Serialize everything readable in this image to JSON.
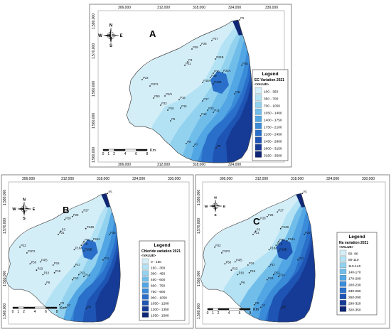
{
  "panels": [
    {
      "id": "A",
      "letter": "A",
      "legend_title": "Legend",
      "legend_subtitle": "EC Variation 2021",
      "legend_value_label": "<VALUE>",
      "classes": [
        "100 - 350",
        "350 - 700",
        "700 - 1050",
        "1050 - 1400",
        "1400 - 1750",
        "1750 - 2100",
        "2100 - 2450",
        "2450 - 2800",
        "2800 - 3150",
        "3150 - 3500"
      ],
      "x_ticks": [
        "306,000",
        "312,000",
        "318,000",
        "324,000",
        "330,000"
      ],
      "y_ticks": [
        "1,580,000",
        "1,570,000",
        "1,560,000",
        "1,560,000",
        "1,560,000"
      ]
    },
    {
      "id": "B",
      "letter": "B",
      "legend_title": "Legend",
      "legend_subtitle": "Chloride variation 2021",
      "legend_value_label": "<VALUE>",
      "classes": [
        "0 - 150",
        "150 - 300",
        "300 - 450",
        "450 - 600",
        "600 - 750",
        "750 - 900",
        "900 - 1050",
        "1050 - 1200",
        "1200 - 1350",
        "1350 - 1500"
      ],
      "x_ticks": [
        "306,000",
        "312,000",
        "318,000",
        "324,000",
        "330,000"
      ],
      "y_ticks": [
        "1,580,000",
        "1,570,000",
        "1,560,000",
        "1,560,000"
      ]
    },
    {
      "id": "C",
      "letter": "C",
      "legend_title": "Legend",
      "legend_subtitle": "Na variation 2021",
      "legend_value_label": "<VALUE>",
      "classes": [
        "50- 80",
        "80-110",
        "110-140",
        "140-170",
        "170-200",
        "200-230",
        "230-260",
        "260-290",
        "290-320",
        "320-350"
      ],
      "x_ticks": [
        "306,000",
        "312,000",
        "318,000",
        "324,000",
        "330,000"
      ],
      "y_ticks": [
        "1,580,000",
        "1,570,000",
        "1,560,000",
        "1,560,000"
      ]
    }
  ],
  "north_arrow": {
    "n": "N",
    "e": "E",
    "s": "S",
    "w": "W"
  },
  "scale_bar": {
    "labels": [
      "0",
      "1",
      "2",
      "4",
      "6",
      "8"
    ],
    "unit": "Km"
  },
  "wells": [
    "P27",
    "P26",
    "P28",
    "P3",
    "P21",
    "P24B",
    "P25",
    "P20",
    "P24A",
    "P19",
    "P22",
    "P1P2",
    "P18A",
    "P18B",
    "P11",
    "P50",
    "P4/5",
    "P16",
    "P17",
    "P13",
    "P23",
    "P10",
    "P15",
    "P14",
    "P12",
    "P6",
    "P9",
    "P8",
    "P7",
    "P5"
  ],
  "colors": {
    "ramp": [
      "#d4eef8",
      "#b3e2f4",
      "#92d2ef",
      "#71bdea",
      "#52a6e3",
      "#3a8bd8",
      "#2a6fc9",
      "#1e54b3",
      "#163b96",
      "#0e2675"
    ],
    "frame": "#555555",
    "map_border": "#444444"
  }
}
